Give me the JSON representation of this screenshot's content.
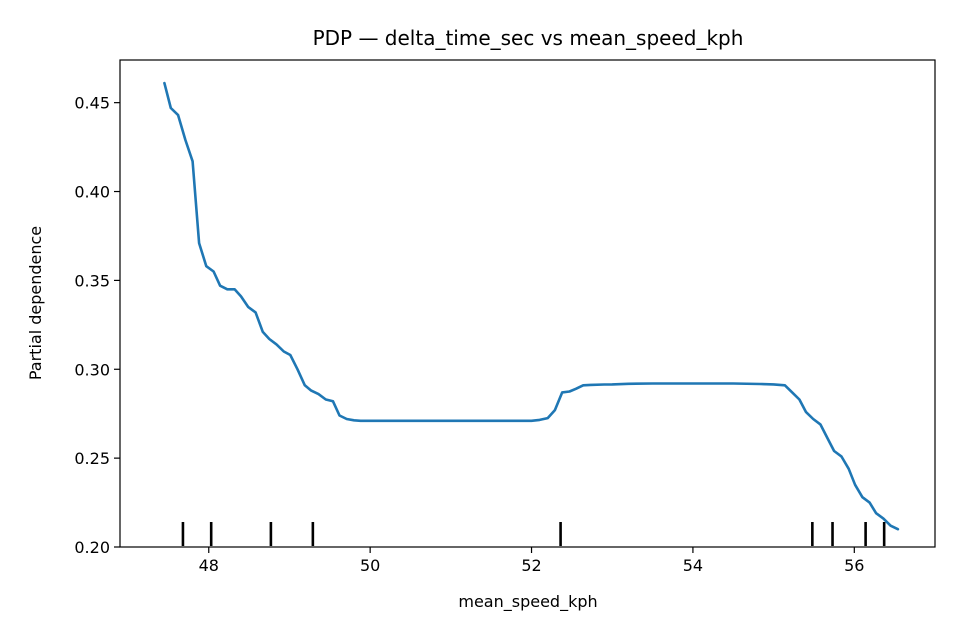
{
  "chart_data": {
    "type": "line",
    "title": "PDP — delta_time_sec vs mean_speed_kph",
    "xlabel": "mean_speed_kph",
    "ylabel": "Partial dependence",
    "xlim": [
      46.9,
      57.0
    ],
    "ylim": [
      0.2,
      0.474
    ],
    "x_ticks": [
      48,
      50,
      52,
      54,
      56
    ],
    "x_tick_labels": [
      "48",
      "50",
      "52",
      "54",
      "56"
    ],
    "y_ticks": [
      0.2,
      0.25,
      0.3,
      0.35,
      0.4,
      0.45
    ],
    "y_tick_labels": [
      "0.20",
      "0.25",
      "0.30",
      "0.35",
      "0.40",
      "0.45"
    ],
    "grid": false,
    "line_color": "#1f77b4",
    "series": [
      {
        "x": [
          47.45,
          47.53,
          47.62,
          47.71,
          47.8,
          47.88,
          47.97,
          48.06,
          48.14,
          48.23,
          48.32,
          48.4,
          48.49,
          48.58,
          48.67,
          48.75,
          48.84,
          48.93,
          49.01,
          49.1,
          49.19,
          49.27,
          49.36,
          49.45,
          49.54,
          49.62,
          49.71,
          49.8,
          49.88,
          50.0,
          50.5,
          51.0,
          51.5,
          52.0,
          52.1,
          52.2,
          52.29,
          52.38,
          52.47,
          52.55,
          52.64,
          52.73,
          52.9,
          53.0,
          53.2,
          53.5,
          54.0,
          54.5,
          54.83,
          55.0,
          55.14,
          55.23,
          55.32,
          55.4,
          55.49,
          55.58,
          55.67,
          55.75,
          55.84,
          55.93,
          56.01,
          56.1,
          56.19,
          56.27,
          56.36,
          56.45,
          56.54
        ],
        "y": [
          0.461,
          0.447,
          0.443,
          0.429,
          0.417,
          0.371,
          0.358,
          0.355,
          0.347,
          0.345,
          0.345,
          0.341,
          0.335,
          0.332,
          0.321,
          0.317,
          0.314,
          0.31,
          0.308,
          0.3,
          0.291,
          0.288,
          0.286,
          0.283,
          0.282,
          0.274,
          0.272,
          0.2713,
          0.271,
          0.271,
          0.271,
          0.271,
          0.271,
          0.271,
          0.2715,
          0.2725,
          0.277,
          0.287,
          0.2875,
          0.289,
          0.291,
          0.2912,
          0.2914,
          0.2915,
          0.2918,
          0.292,
          0.292,
          0.292,
          0.2917,
          0.2915,
          0.291,
          0.287,
          0.283,
          0.276,
          0.272,
          0.269,
          0.261,
          0.254,
          0.251,
          0.244,
          0.235,
          0.228,
          0.225,
          0.219,
          0.216,
          0.212,
          0.21
        ]
      }
    ],
    "rug": [
      47.68,
      48.03,
      48.77,
      49.29,
      52.36,
      55.48,
      55.73,
      56.14,
      56.37
    ]
  }
}
